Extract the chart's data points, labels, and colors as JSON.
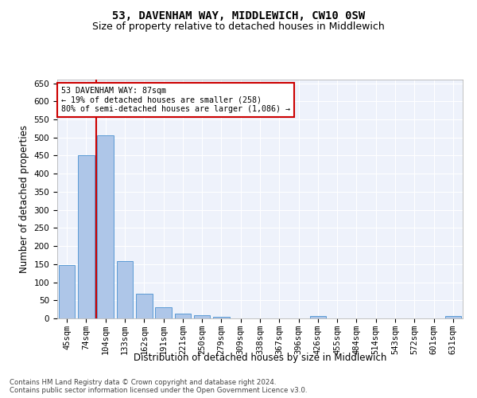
{
  "title": "53, DAVENHAM WAY, MIDDLEWICH, CW10 0SW",
  "subtitle": "Size of property relative to detached houses in Middlewich",
  "xlabel": "Distribution of detached houses by size in Middlewich",
  "ylabel": "Number of detached properties",
  "categories": [
    "45sqm",
    "74sqm",
    "104sqm",
    "133sqm",
    "162sqm",
    "191sqm",
    "221sqm",
    "250sqm",
    "279sqm",
    "309sqm",
    "338sqm",
    "367sqm",
    "396sqm",
    "426sqm",
    "455sqm",
    "484sqm",
    "514sqm",
    "543sqm",
    "572sqm",
    "601sqm",
    "631sqm"
  ],
  "values": [
    148,
    450,
    505,
    158,
    68,
    30,
    14,
    9,
    5,
    0,
    0,
    0,
    0,
    6,
    0,
    0,
    0,
    0,
    0,
    0,
    6
  ],
  "bar_color": "#aec6e8",
  "bar_edge_color": "#5b9bd5",
  "vline_x": 1.5,
  "vline_color": "#cc0000",
  "annotation_line1": "53 DAVENHAM WAY: 87sqm",
  "annotation_line2": "← 19% of detached houses are smaller (258)",
  "annotation_line3": "80% of semi-detached houses are larger (1,086) →",
  "annotation_box_color": "#ffffff",
  "annotation_box_edge": "#cc0000",
  "ylim": [
    0,
    660
  ],
  "yticks": [
    0,
    50,
    100,
    150,
    200,
    250,
    300,
    350,
    400,
    450,
    500,
    550,
    600,
    650
  ],
  "background_color": "#eef2fb",
  "grid_color": "#ffffff",
  "title_fontsize": 10,
  "subtitle_fontsize": 9,
  "axis_label_fontsize": 8.5,
  "tick_fontsize": 7.5,
  "footer_text": "Contains HM Land Registry data © Crown copyright and database right 2024.\nContains public sector information licensed under the Open Government Licence v3.0."
}
